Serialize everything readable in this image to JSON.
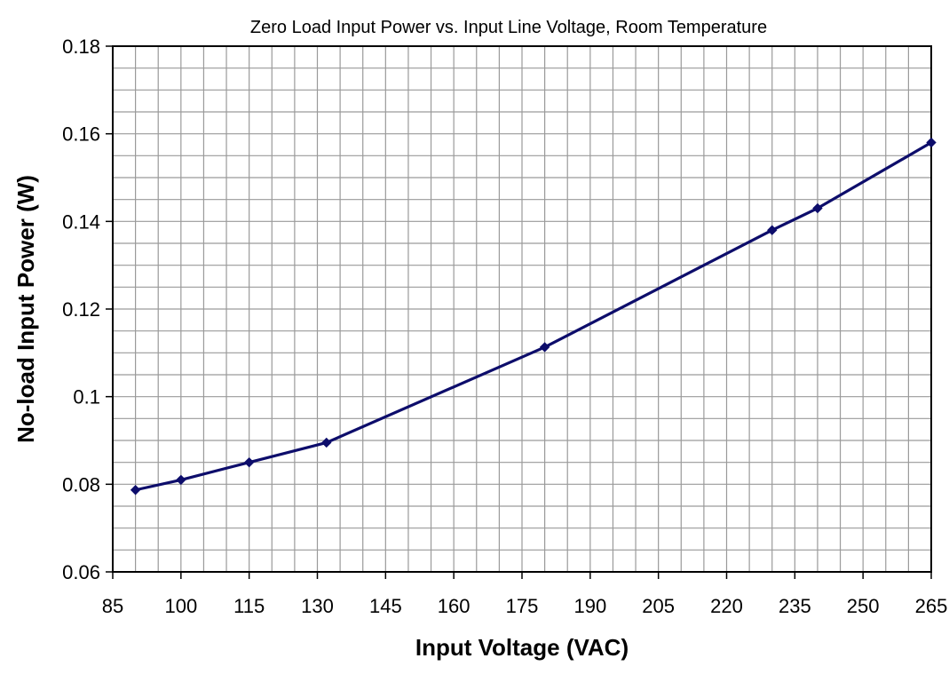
{
  "chart_data": {
    "type": "line",
    "title": "Zero Load Input Power vs. Input Line Voltage, Room Temperature",
    "xlabel": "Input Voltage (VAC)",
    "ylabel": "No-load Input Power (W)",
    "xlim": [
      85,
      265
    ],
    "ylim": [
      0.06,
      0.18
    ],
    "x_ticks": [
      85,
      100,
      115,
      130,
      145,
      160,
      175,
      190,
      205,
      220,
      235,
      250,
      265
    ],
    "x_tick_labels": [
      "85",
      "100",
      "115",
      "130",
      "145",
      "160",
      "175",
      "190",
      "205",
      "220",
      "235",
      "250",
      "265"
    ],
    "y_ticks": [
      0.06,
      0.08,
      0.1,
      0.12,
      0.14,
      0.16,
      0.18
    ],
    "y_tick_labels": [
      "0.06",
      "0.08",
      "0.1",
      "0.12",
      "0.14",
      "0.16",
      "0.18"
    ],
    "grid": true,
    "x_minor_step": 5,
    "y_minor_step": 0.005,
    "legend": "none",
    "series": [
      {
        "name": "No-load Input Power",
        "color": "#0d0d6b",
        "marker": "diamond",
        "x": [
          90,
          100,
          115,
          132,
          180,
          230,
          240,
          265
        ],
        "y": [
          0.0787,
          0.081,
          0.085,
          0.0895,
          0.1113,
          0.138,
          0.143,
          0.158
        ]
      }
    ]
  }
}
